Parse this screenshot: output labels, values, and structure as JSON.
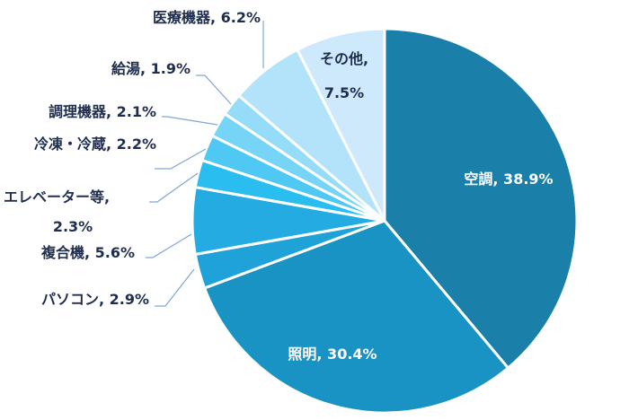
{
  "chart_data": {
    "type": "pie",
    "start": "12 o'clock",
    "direction": "clockwise",
    "slices": [
      {
        "category": "空調",
        "value": 38.9,
        "label": "空調, 38.9%",
        "color": "#1a80aa"
      },
      {
        "category": "照明",
        "value": 30.4,
        "label": "照明, 30.4%",
        "color": "#1992c4"
      },
      {
        "category": "パソコン",
        "value": 2.9,
        "label": "パソコン, 2.9%",
        "color": "#1ea2d8"
      },
      {
        "category": "複合機",
        "value": 5.6,
        "label": "複合機, 5.6%",
        "color": "#23abe2"
      },
      {
        "category": "エレベーター等",
        "value": 2.3,
        "label_line1": "エレベーター等,",
        "label_line2": "2.3%",
        "color": "#29bdf0"
      },
      {
        "category": "冷凍・冷蔵",
        "value": 2.2,
        "label": "冷凍・冷蔵, 2.2%",
        "color": "#4fc8f3"
      },
      {
        "category": "調理機器",
        "value": 2.1,
        "label": "調理機器, 2.1%",
        "color": "#76d4f6"
      },
      {
        "category": "給湯",
        "value": 1.9,
        "label": "給湯, 1.9%",
        "color": "#94dcf8"
      },
      {
        "category": "医療機器",
        "value": 6.2,
        "label": "医療機器, 6.2%",
        "color": "#b2e3fb"
      },
      {
        "category": "その他",
        "value": 7.5,
        "label_line1": "その他,",
        "label_line2": "7.5%",
        "color": "#cfe9fc"
      }
    ]
  }
}
